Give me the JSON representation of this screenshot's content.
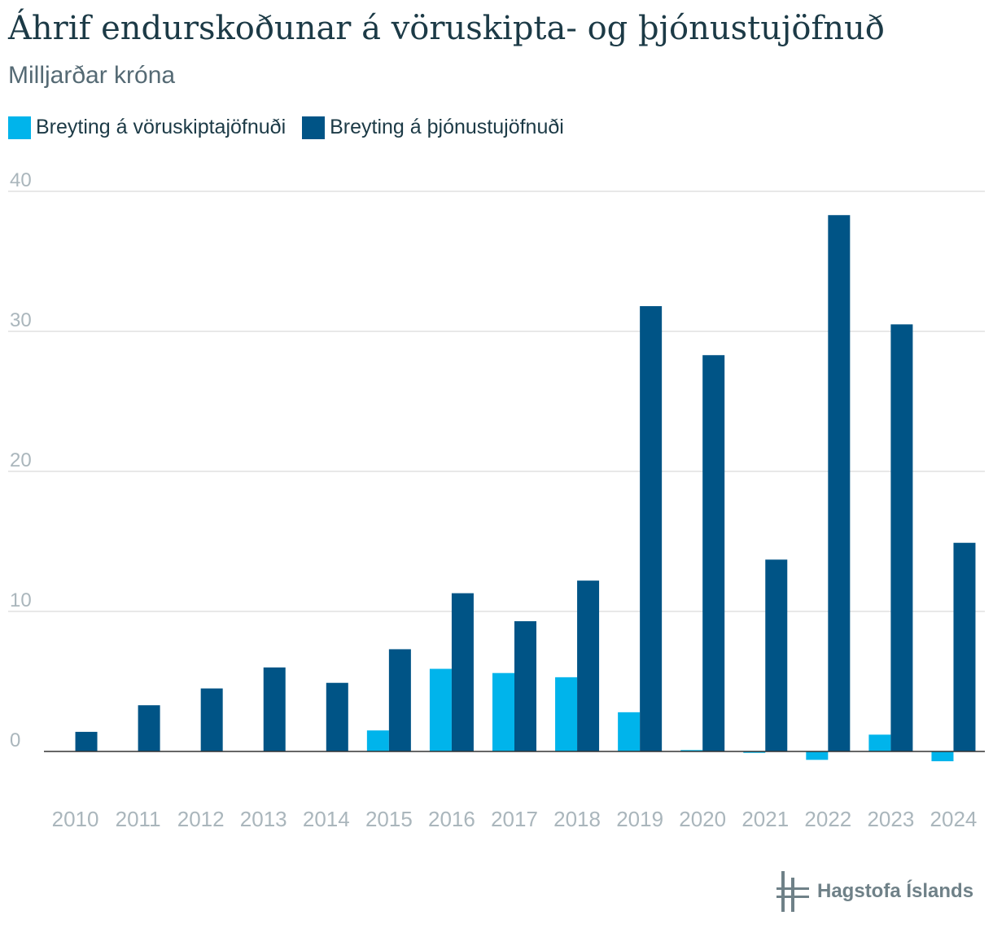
{
  "title": "Áhrif endurskoðunar á vöruskipta- og þjónustujöfnuð",
  "subtitle": "Milljarðar króna",
  "brand": {
    "name": "Hagstofa Íslands",
    "color": "#6f8188"
  },
  "colors": {
    "goods": "#00b4eb",
    "services": "#005486",
    "grid": "#e0e0e0",
    "axis": "#333333",
    "tick": "#aab6bc"
  },
  "chart_data": {
    "type": "bar",
    "title": "Áhrif endurskoðunar á vöruskipta- og þjónustujöfnuð",
    "subtitle": "Milljarðar króna",
    "xlabel": "",
    "ylabel": "",
    "ylim": [
      -3,
      41
    ],
    "yticks": [
      0,
      10,
      20,
      30,
      40
    ],
    "grid": true,
    "legend": "top-left",
    "categories": [
      "2010",
      "2011",
      "2012",
      "2013",
      "2014",
      "2015",
      "2016",
      "2017",
      "2018",
      "2019",
      "2020",
      "2021",
      "2022",
      "2023",
      "2024"
    ],
    "series": [
      {
        "name": "Breyting á vöruskiptajöfnuði",
        "color": "#00b4eb",
        "values": [
          0,
          0,
          0,
          0,
          0,
          1.5,
          5.9,
          5.6,
          5.3,
          2.8,
          0.1,
          -0.1,
          -0.6,
          1.2,
          -0.7
        ]
      },
      {
        "name": "Breyting á þjónustujöfnuði",
        "color": "#005486",
        "values": [
          1.4,
          3.3,
          4.5,
          6.0,
          4.9,
          7.3,
          11.3,
          9.3,
          12.2,
          31.8,
          28.3,
          13.7,
          38.3,
          30.5,
          14.9
        ]
      }
    ]
  }
}
